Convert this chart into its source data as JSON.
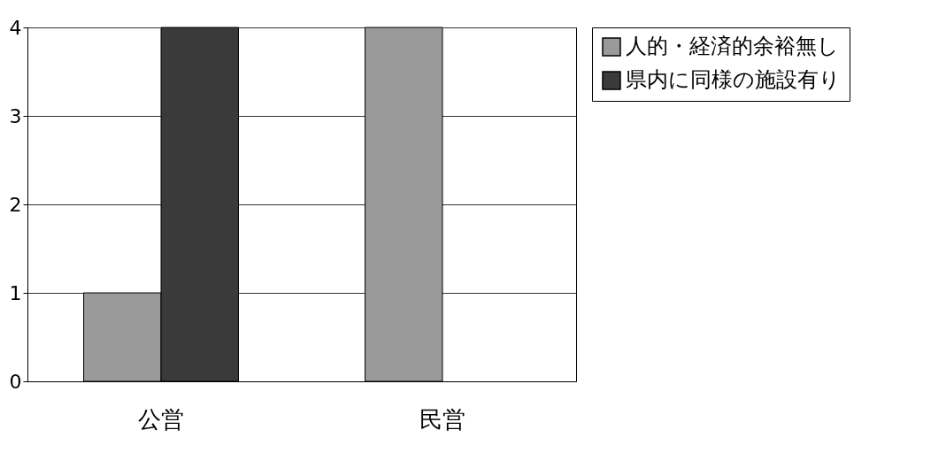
{
  "chart_data": {
    "type": "bar",
    "categories": [
      "公営",
      "民営"
    ],
    "series": [
      {
        "name": "人的・経済的余裕無し",
        "color": "#9a9a9a",
        "values": [
          1,
          4
        ]
      },
      {
        "name": "県内に同様の施設有り",
        "color": "#3a3a3a",
        "values": [
          4,
          0
        ]
      }
    ],
    "ylim": [
      0,
      4
    ],
    "yticks": [
      0,
      1,
      2,
      3,
      4
    ],
    "grid": "y",
    "legend": "right"
  }
}
